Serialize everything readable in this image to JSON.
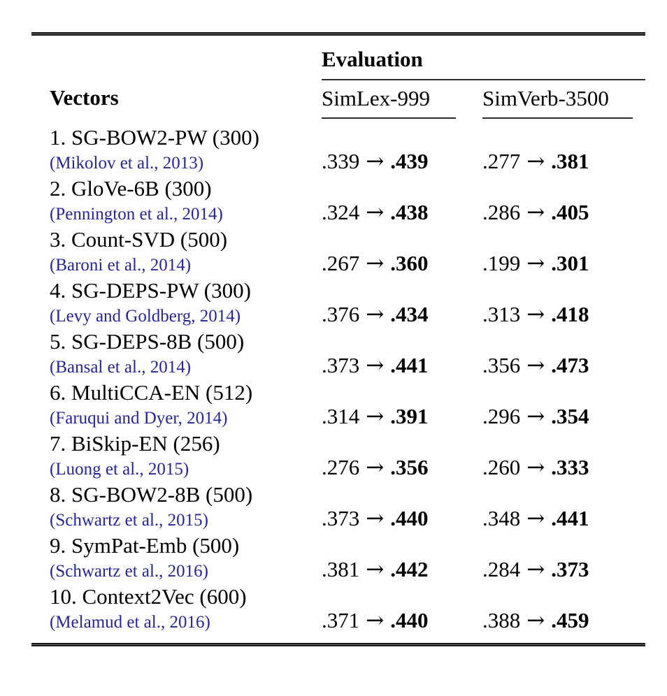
{
  "figure": {
    "columns": {
      "vectors": "Vectors",
      "evaluation": "Evaluation",
      "simlex": "SimLex-999",
      "simverb": "SimVerb-3500"
    },
    "glyphs": {
      "arrow": "→"
    },
    "colors": {
      "text": "#000000",
      "citation_link": "#252595",
      "rule": "#191919"
    },
    "rows": [
      {
        "name": "1. SG-BOW2-PW (300)",
        "citation": "(Mikolov et al., 2013)",
        "simlex": {
          "from": ".339",
          "to": ".439"
        },
        "simverb": {
          "from": ".277",
          "to": ".381"
        }
      },
      {
        "name": "2. GloVe-6B (300)",
        "citation": "(Pennington et al., 2014)",
        "simlex": {
          "from": ".324",
          "to": ".438"
        },
        "simverb": {
          "from": ".286",
          "to": ".405"
        }
      },
      {
        "name": "3. Count-SVD (500)",
        "citation": "(Baroni et al., 2014)",
        "simlex": {
          "from": ".267",
          "to": ".360"
        },
        "simverb": {
          "from": ".199",
          "to": ".301"
        }
      },
      {
        "name": "4. SG-DEPS-PW (300)",
        "citation": "(Levy and Goldberg, 2014)",
        "simlex": {
          "from": ".376",
          "to": ".434"
        },
        "simverb": {
          "from": ".313",
          "to": ".418"
        }
      },
      {
        "name": "5. SG-DEPS-8B (500)",
        "citation": "(Bansal et al., 2014)",
        "simlex": {
          "from": ".373",
          "to": ".441"
        },
        "simverb": {
          "from": ".356",
          "to": ".473"
        }
      },
      {
        "name": "6. MultiCCA-EN (512)",
        "citation": "(Faruqui and Dyer, 2014)",
        "simlex": {
          "from": ".314",
          "to": ".391"
        },
        "simverb": {
          "from": ".296",
          "to": ".354"
        }
      },
      {
        "name": "7. BiSkip-EN (256)",
        "citation": "(Luong et al., 2015)",
        "simlex": {
          "from": ".276",
          "to": ".356"
        },
        "simverb": {
          "from": ".260",
          "to": ".333"
        }
      },
      {
        "name": "8. SG-BOW2-8B (500)",
        "citation": "(Schwartz et al., 2015)",
        "simlex": {
          "from": ".373",
          "to": ".440"
        },
        "simverb": {
          "from": ".348",
          "to": ".441"
        }
      },
      {
        "name": "9. SymPat-Emb (500)",
        "citation": "(Schwartz et al., 2016)",
        "simlex": {
          "from": ".381",
          "to": ".442"
        },
        "simverb": {
          "from": ".284",
          "to": ".373"
        }
      },
      {
        "name": "10. Context2Vec (600)",
        "citation": "(Melamud et al., 2016)",
        "simlex": {
          "from": ".371",
          "to": ".440"
        },
        "simverb": {
          "from": ".388",
          "to": ".459"
        }
      }
    ]
  }
}
